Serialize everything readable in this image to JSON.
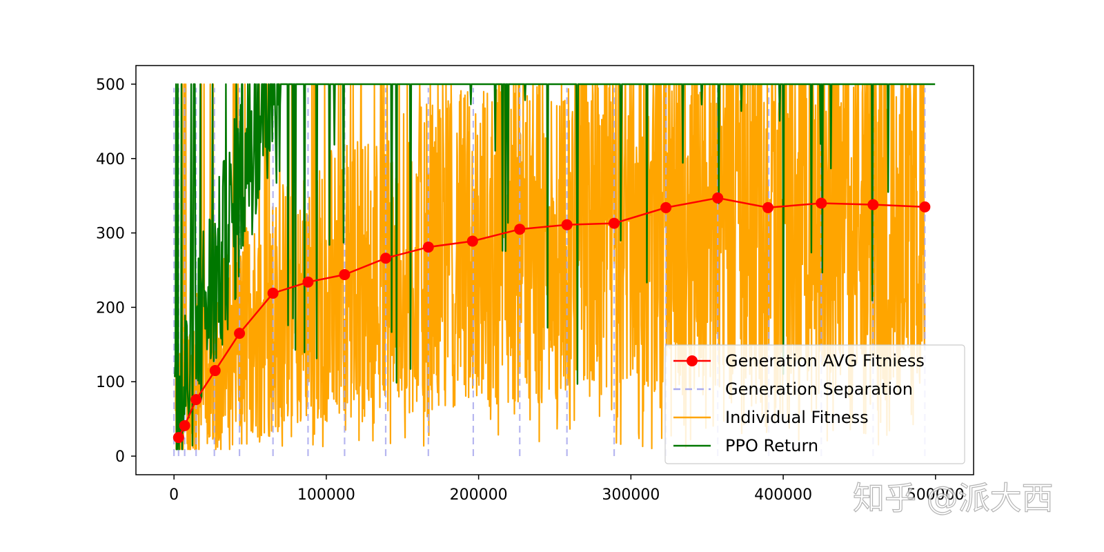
{
  "watermark": "知乎 @派大西",
  "chart_data": {
    "type": "line",
    "title": "",
    "xlabel": "",
    "ylabel": "",
    "xlim": [
      -25000,
      525000
    ],
    "ylim": [
      -25,
      525
    ],
    "x_ticks": [
      0,
      100000,
      200000,
      300000,
      400000,
      500000
    ],
    "x_tick_labels": [
      "0",
      "100000",
      "200000",
      "300000",
      "400000",
      "500000"
    ],
    "y_ticks": [
      0,
      100,
      200,
      300,
      400,
      500
    ],
    "y_tick_labels": [
      "0",
      "100",
      "200",
      "300",
      "400",
      "500"
    ],
    "grid": false,
    "legend_position": "lower right",
    "colors": {
      "avg_fitness": "#ff0000",
      "separation": "#aaaaee",
      "individual": "#ffa500",
      "ppo": "#007700"
    },
    "series": [
      {
        "name": "Generation AVG Fitniess",
        "style": "line-with-circles",
        "x": [
          3000,
          7000,
          14500,
          27000,
          43000,
          65000,
          88000,
          112000,
          139000,
          167000,
          196000,
          227000,
          258000,
          289000,
          323000,
          357000,
          390000,
          425000,
          459000,
          493000
        ],
        "y": [
          25,
          41,
          76,
          115,
          165,
          219,
          234,
          244,
          266,
          281,
          289,
          305,
          311,
          313,
          334,
          347,
          334,
          340,
          338,
          335
        ]
      },
      {
        "name": "Generation Separation",
        "style": "vertical-dashed",
        "x": [
          0,
          3000,
          7000,
          14500,
          26500,
          43000,
          65000,
          88000,
          112000,
          139000,
          167000,
          196500,
          227000,
          258000,
          289000,
          323000,
          357000,
          390500,
          425000,
          459000,
          493000
        ],
        "y_range": [
          0,
          495
        ]
      },
      {
        "name": "Individual Fitness",
        "style": "noisy-line",
        "x": [
          0,
          10000,
          20000,
          40000,
          60000,
          80000,
          100000,
          130000,
          160000,
          200000,
          250000,
          300000,
          350000,
          400000,
          450000,
          493000
        ],
        "y": [
          30,
          90,
          120,
          150,
          180,
          210,
          225,
          245,
          265,
          285,
          300,
          315,
          335,
          335,
          335,
          330
        ]
      },
      {
        "name": "PPO Return",
        "style": "step-line",
        "x": [
          0,
          5000,
          10000,
          20000,
          30000,
          40000,
          50000,
          60000,
          70000,
          80000,
          100000,
          150000,
          200000,
          250000,
          300000,
          350000,
          400000,
          450000,
          500000
        ],
        "y": [
          20,
          60,
          120,
          200,
          250,
          330,
          420,
          480,
          500,
          500,
          500,
          500,
          500,
          500,
          500,
          500,
          500,
          500,
          500
        ]
      }
    ]
  }
}
